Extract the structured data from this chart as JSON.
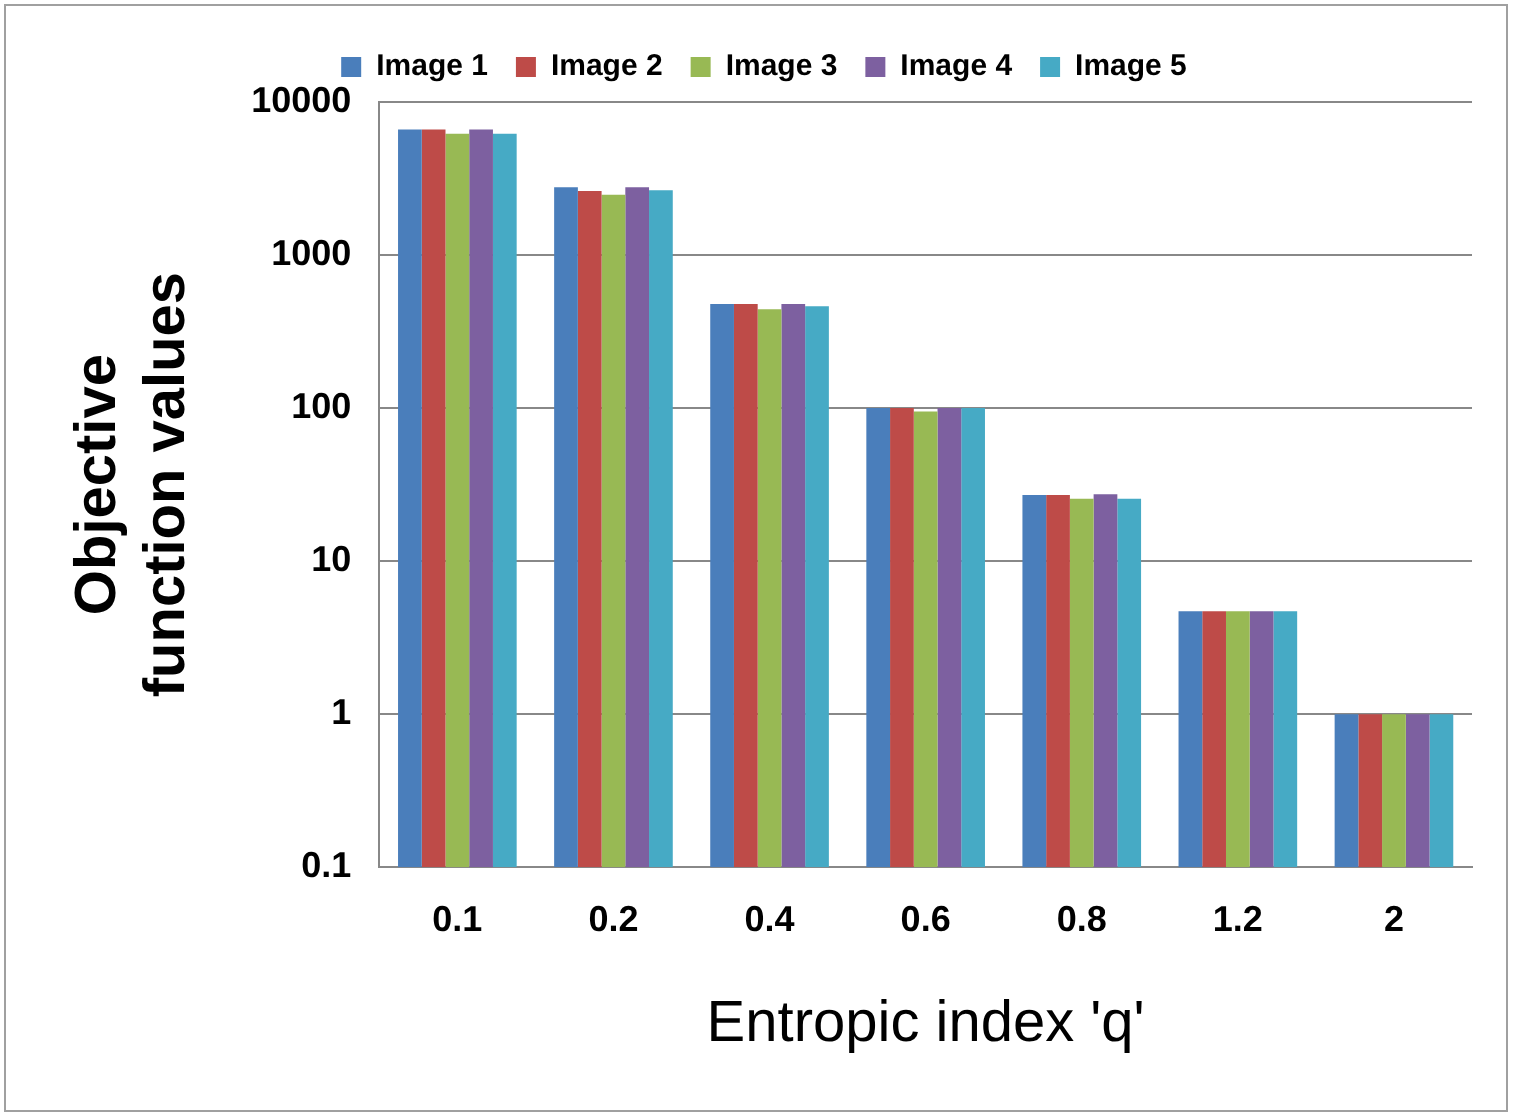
{
  "chart_data": {
    "type": "bar",
    "xlabel": "Entropic index 'q'",
    "ylabel": "Objective function values",
    "categories": [
      "0.1",
      "0.2",
      "0.4",
      "0.6",
      "0.8",
      "1.2",
      "2"
    ],
    "series": [
      {
        "name": "Image 1",
        "color": "#4a7ebb",
        "values": [
          6600,
          2770,
          478,
          100,
          27,
          4.7,
          1
        ]
      },
      {
        "name": "Image 2",
        "color": "#be4b48",
        "values": [
          6600,
          2620,
          478,
          100,
          27,
          4.7,
          1
        ]
      },
      {
        "name": "Image 3",
        "color": "#98b954",
        "values": [
          6200,
          2480,
          442,
          95,
          25.6,
          4.7,
          1
        ]
      },
      {
        "name": "Image 4",
        "color": "#7d60a0",
        "values": [
          6600,
          2770,
          478,
          100,
          27.4,
          4.7,
          1
        ]
      },
      {
        "name": "Image 5",
        "color": "#46aac5",
        "values": [
          6200,
          2650,
          462,
          100,
          25.6,
          4.7,
          1
        ]
      }
    ],
    "log": true,
    "ylim": [
      0.1,
      10000
    ],
    "yticks": [
      0.1,
      1,
      10,
      100,
      1000,
      10000
    ],
    "grid": "y",
    "legend": "top"
  }
}
